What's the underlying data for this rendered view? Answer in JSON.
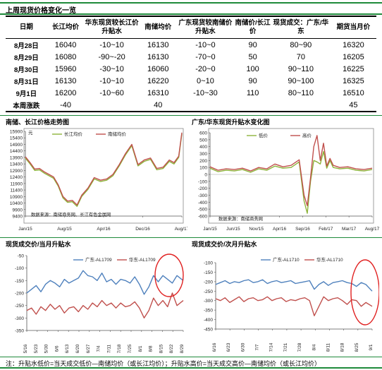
{
  "price_table": {
    "title": "上周现货价格变化一览",
    "headers": [
      "日期",
      "长江均价",
      "华东现货较长江价升贴水",
      "南储均价",
      "广东现货较南储价升贴水",
      "南储价/长江价",
      "现货成交：广东/华东",
      "期货当月价"
    ],
    "rows": [
      [
        "8月28日",
        "16040",
        "-10~10",
        "16130",
        "-10~0",
        "90",
        "80~90",
        "16320"
      ],
      [
        "8月29日",
        "16080",
        "-90~-20",
        "16130",
        "-70~0",
        "50",
        "70",
        "16205"
      ],
      [
        "8月30日",
        "15960",
        "-30~10",
        "16060",
        "-20~0",
        "100",
        "90~110",
        "16225"
      ],
      [
        "8月31日",
        "16130",
        "-10~10",
        "16220",
        "0~10",
        "90",
        "90~100",
        "16325"
      ],
      [
        "9月1日",
        "16200",
        "-10~60",
        "16310",
        "-10~30",
        "110",
        "80~110",
        "16510"
      ]
    ],
    "summary_label": "本周涨跌",
    "summary_values": {
      "changjiang": "-40",
      "nanchu": "40",
      "futures": "45"
    }
  },
  "chart_data": [
    {
      "id": "chart1",
      "type": "line",
      "title": "南储、长江价格走势图",
      "ylabel": "元",
      "ylim": [
        9400,
        15900
      ],
      "yticks": [
        9400,
        9900,
        10400,
        10900,
        11400,
        11900,
        12400,
        12900,
        13400,
        13900,
        14400,
        14900,
        15400,
        15900
      ],
      "xticks": [
        "Jan/15",
        "Aug/15",
        "Apr/16",
        "Dec/16",
        "Aug/17"
      ],
      "legend_position": "top",
      "source": "数据来源：南储商务网、长江有色金属网",
      "series": [
        {
          "name": "长江均价",
          "color": "#8db33a",
          "x": [
            0,
            3,
            6,
            9,
            12,
            15,
            18,
            21,
            24,
            27,
            30,
            33,
            36,
            40,
            44,
            48,
            52,
            56,
            60,
            64,
            68,
            72,
            76,
            80,
            84,
            88,
            92,
            95,
            98,
            100
          ],
          "values": [
            13850,
            13400,
            12900,
            12950,
            12700,
            12500,
            12300,
            11700,
            10800,
            10450,
            10500,
            10150,
            10900,
            11450,
            12250,
            12050,
            12150,
            12500,
            13250,
            14100,
            14800,
            13250,
            13600,
            13750,
            12950,
            13050,
            13600,
            13400,
            13900,
            15700
          ]
        },
        {
          "name": "南储均价",
          "color": "#c0504d",
          "x": [
            0,
            3,
            6,
            9,
            12,
            15,
            18,
            21,
            24,
            27,
            30,
            33,
            36,
            40,
            44,
            48,
            52,
            56,
            60,
            64,
            68,
            72,
            76,
            80,
            84,
            88,
            92,
            95,
            98,
            100
          ],
          "values": [
            13950,
            13500,
            13000,
            13050,
            12800,
            12600,
            12400,
            11800,
            10900,
            10550,
            10600,
            10250,
            11000,
            11550,
            12350,
            12150,
            12250,
            12600,
            13350,
            14200,
            14900,
            13350,
            13700,
            13850,
            13050,
            13150,
            13700,
            13500,
            14000,
            15800
          ]
        }
      ]
    },
    {
      "id": "chart2",
      "type": "line",
      "title": "广东/华东现货升贴水变化图",
      "ylim": [
        -600,
        600
      ],
      "yticks": [
        600,
        500,
        400,
        300,
        200,
        100,
        0,
        -100,
        -200,
        -300,
        -400,
        -500,
        -600
      ],
      "xticks": [
        "Jan/15",
        "Jun/15",
        "Nov/15",
        "Apr/16",
        "Sep/16",
        "Feb/17",
        "Mar/17",
        "Aug/17"
      ],
      "legend_position": "top",
      "source": "数据来源：南储商务网",
      "series": [
        {
          "name": "低价",
          "color": "#8db33a",
          "x": [
            0,
            5,
            10,
            15,
            20,
            25,
            30,
            35,
            40,
            45,
            50,
            55,
            58,
            60,
            62,
            64,
            66,
            68,
            70,
            72,
            74,
            76,
            80,
            85,
            90,
            95,
            100
          ],
          "values": [
            90,
            40,
            60,
            50,
            70,
            30,
            80,
            60,
            120,
            90,
            100,
            180,
            -380,
            -560,
            -100,
            200,
            180,
            150,
            330,
            90,
            200,
            100,
            80,
            90,
            60,
            50,
            70
          ]
        },
        {
          "name": "高价",
          "color": "#c0504d",
          "x": [
            0,
            5,
            10,
            15,
            20,
            25,
            30,
            35,
            40,
            45,
            50,
            55,
            58,
            60,
            62,
            64,
            66,
            68,
            70,
            72,
            74,
            76,
            80,
            85,
            90,
            95,
            100
          ],
          "values": [
            110,
            60,
            80,
            70,
            90,
            50,
            100,
            80,
            150,
            110,
            130,
            210,
            -300,
            -450,
            -50,
            400,
            560,
            200,
            450,
            120,
            230,
            130,
            100,
            110,
            80,
            70,
            90
          ]
        }
      ]
    },
    {
      "id": "chart3",
      "type": "line",
      "title": "现货成交价/当月升贴水",
      "ylim": [
        -350,
        -50
      ],
      "yticks": [
        -50,
        -100,
        -150,
        -200,
        -250,
        -300,
        -350
      ],
      "xticks": [
        "5/16",
        "5/23",
        "5/30",
        "6/6",
        "6/13",
        "6/20",
        "6/27",
        "7/4",
        "7/11",
        "7/18",
        "7/25",
        "8/1",
        "8/8",
        "8/15",
        "8/22",
        "8/29"
      ],
      "legend_position": "top-center",
      "series": [
        {
          "name": "广东-AL1709",
          "color": "#4f81bd",
          "x": [
            0,
            3,
            6,
            9,
            12,
            15,
            18,
            21,
            24,
            27,
            30,
            33,
            36,
            39,
            42,
            45,
            48,
            51,
            54,
            57,
            60,
            63,
            66,
            69,
            72,
            75,
            78,
            81,
            84,
            87,
            90,
            93,
            96,
            100
          ],
          "values": [
            -200,
            -185,
            -170,
            -195,
            -165,
            -150,
            -160,
            -175,
            -145,
            -160,
            -150,
            -140,
            -110,
            -130,
            -135,
            -150,
            -120,
            -155,
            -145,
            -165,
            -145,
            -150,
            -160,
            -135,
            -165,
            -205,
            -175,
            -130,
            -155,
            -130,
            -145,
            -160,
            -130,
            -150
          ]
        },
        {
          "name": "华东-AL1709",
          "color": "#c0504d",
          "x": [
            0,
            3,
            6,
            9,
            12,
            15,
            18,
            21,
            24,
            27,
            30,
            33,
            36,
            39,
            42,
            45,
            48,
            51,
            54,
            57,
            60,
            63,
            66,
            69,
            72,
            75,
            78,
            81,
            84,
            87,
            90,
            93,
            96,
            100
          ],
          "values": [
            -270,
            -260,
            -285,
            -255,
            -270,
            -245,
            -265,
            -250,
            -280,
            -260,
            -255,
            -275,
            -250,
            -265,
            -240,
            -255,
            -230,
            -250,
            -240,
            -260,
            -240,
            -255,
            -250,
            -235,
            -260,
            -300,
            -270,
            -220,
            -250,
            -230,
            -255,
            -200,
            -250,
            -230
          ]
        }
      ]
    },
    {
      "id": "chart4",
      "type": "line",
      "title": "现货成交价/次月升贴水",
      "ylim": [
        -450,
        -100
      ],
      "yticks": [
        -100,
        -150,
        -200,
        -250,
        -300,
        -350,
        -400,
        -450
      ],
      "xticks": [
        "6/16",
        "6/23",
        "6/30",
        "7/7",
        "7/14",
        "7/21",
        "7/28",
        "8/4",
        "8/11",
        "8/18",
        "8/25",
        "9/1"
      ],
      "legend_position": "top-center",
      "series": [
        {
          "name": "广东-AL1710",
          "color": "#4f81bd",
          "x": [
            0,
            3,
            6,
            9,
            12,
            15,
            18,
            21,
            24,
            27,
            30,
            33,
            36,
            39,
            42,
            45,
            48,
            51,
            54,
            57,
            60,
            63,
            66,
            69,
            72,
            75,
            78,
            81,
            84,
            87,
            90,
            93,
            96,
            100
          ],
          "values": [
            -215,
            -205,
            -195,
            -210,
            -200,
            -205,
            -195,
            -190,
            -205,
            -200,
            -190,
            -210,
            -200,
            -195,
            -205,
            -200,
            -195,
            -210,
            -205,
            -200,
            -195,
            -240,
            -215,
            -200,
            -220,
            -205,
            -200,
            -195,
            -205,
            -210,
            -225,
            -205,
            -215,
            -250
          ]
        },
        {
          "name": "华东-AL1710",
          "color": "#c0504d",
          "x": [
            0,
            3,
            6,
            9,
            12,
            15,
            18,
            21,
            24,
            27,
            30,
            33,
            36,
            39,
            42,
            45,
            48,
            51,
            54,
            57,
            60,
            63,
            66,
            69,
            72,
            75,
            78,
            81,
            84,
            87,
            90,
            93,
            96,
            100
          ],
          "values": [
            -290,
            -300,
            -285,
            -310,
            -295,
            -280,
            -305,
            -290,
            -285,
            -300,
            -295,
            -280,
            -300,
            -290,
            -285,
            -305,
            -295,
            -300,
            -290,
            -285,
            -300,
            -380,
            -330,
            -280,
            -300,
            -290,
            -285,
            -300,
            -320,
            -295,
            -300,
            -330,
            -310,
            -330
          ]
        }
      ]
    }
  ],
  "note": "注：升贴水低价=当天成交低价—南储均价（或长江均价）；升贴水高价=当天成交高价—南储均价（或长江均价）",
  "colors": {
    "accent_green": "#1f8a3b",
    "highlight_circle": "#e02020"
  }
}
